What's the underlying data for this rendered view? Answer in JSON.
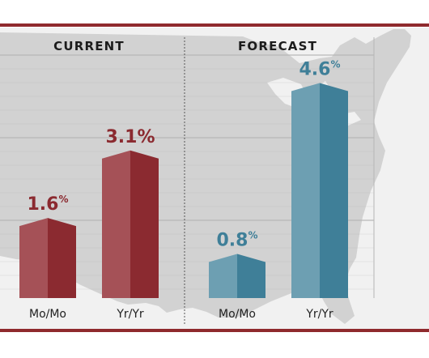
{
  "colors": {
    "frame": "#8f2a2d",
    "panel_bg": "#f1f1f1",
    "map": "#d2d2d2",
    "grid": "#b5b5b5",
    "current_front": "#a55157",
    "current_side": "#8b2a30",
    "forecast_front": "#6d9fb2",
    "forecast_side": "#3f7f98",
    "axis_text": "#222222",
    "header_text": "#1c1c1c"
  },
  "chart_data": {
    "type": "bar",
    "grid": true,
    "ylim": [
      0,
      5.4
    ],
    "groups": [
      {
        "title": "CURRENT",
        "categories": [
          "Mo/Mo",
          "Yr/Yr"
        ],
        "values": [
          1.6,
          3.1
        ],
        "labels": [
          {
            "value": "1.6",
            "unit": "%"
          },
          {
            "value": "3.1%",
            "unit": ""
          }
        ],
        "label_color": "#8b2a30"
      },
      {
        "title": "FORECAST",
        "categories": [
          "Mo/Mo",
          "Yr/Yr"
        ],
        "values": [
          0.8,
          4.6
        ],
        "labels": [
          {
            "value": "0.8",
            "unit": "%"
          },
          {
            "value": "4.6",
            "unit": "%"
          }
        ],
        "label_color": "#3f7f98"
      }
    ]
  }
}
